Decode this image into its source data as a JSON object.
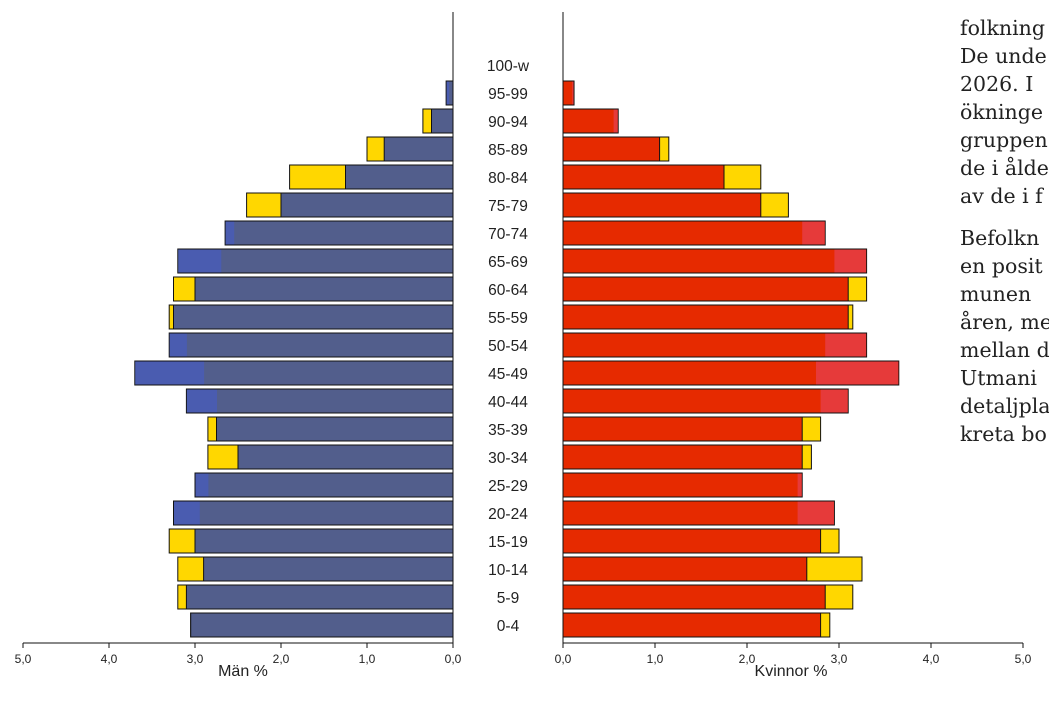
{
  "chart_data": {
    "type": "bar",
    "subtype": "population-pyramid",
    "categories": [
      "100-w",
      "95-99",
      "90-94",
      "85-89",
      "80-84",
      "75-79",
      "70-74",
      "65-69",
      "60-64",
      "55-59",
      "50-54",
      "45-49",
      "40-44",
      "35-39",
      "30-34",
      "25-29",
      "20-24",
      "15-19",
      "10-14",
      "5-9",
      "0-4"
    ],
    "left_panel": {
      "xlabel": "Män %",
      "xlim": [
        5.0,
        0.0
      ],
      "ticks": [
        "5,0",
        "4,0",
        "3,0",
        "2,0",
        "1,0",
        "0,0"
      ],
      "series": [
        {
          "name": "",
          "color": "#ffd700",
          "values": [
            0.0,
            0.05,
            0.35,
            1.0,
            1.9,
            2.4,
            2.55,
            2.7,
            3.25,
            3.3,
            3.1,
            2.9,
            2.75,
            2.85,
            2.85,
            2.85,
            2.95,
            3.3,
            3.2,
            3.2,
            3.05
          ]
        },
        {
          "name": "",
          "color": "#525e8c",
          "highlight": "#4a5cb0",
          "values": [
            0.0,
            0.08,
            0.25,
            0.8,
            1.25,
            2.0,
            2.65,
            3.2,
            3.0,
            3.25,
            3.3,
            3.7,
            3.1,
            2.75,
            2.5,
            3.0,
            3.25,
            3.0,
            2.9,
            3.1,
            3.05
          ]
        }
      ]
    },
    "right_panel": {
      "xlabel": "Kvinnor %",
      "xlim": [
        0.0,
        5.0
      ],
      "ticks": [
        "0,0",
        "1,0",
        "2,0",
        "3,0",
        "4,0",
        "5,0"
      ],
      "series": [
        {
          "name": "",
          "color": "#ffd700",
          "values": [
            0.0,
            0.1,
            0.55,
            1.15,
            2.15,
            2.45,
            2.6,
            2.95,
            3.3,
            3.15,
            2.85,
            2.75,
            2.8,
            2.8,
            2.7,
            2.55,
            2.55,
            3.0,
            3.25,
            3.15,
            2.9
          ]
        },
        {
          "name": "",
          "color": "#e62a00",
          "highlight": "#e63a3a",
          "values": [
            0.0,
            0.12,
            0.6,
            1.05,
            1.75,
            2.15,
            2.85,
            3.3,
            3.1,
            3.1,
            3.3,
            3.65,
            3.1,
            2.6,
            2.6,
            2.6,
            2.95,
            2.8,
            2.65,
            2.85,
            2.8
          ]
        }
      ]
    }
  },
  "side_text": {
    "para1": [
      "folkning",
      "De unde",
      "2026. I",
      "ökninge",
      "gruppen",
      "de i ålde",
      "av de i f"
    ],
    "para2": [
      "Befolkn",
      "en posit",
      "munen",
      "åren, me",
      "mellan d",
      "Utmani",
      "detaljpla",
      "kreta bo"
    ]
  }
}
